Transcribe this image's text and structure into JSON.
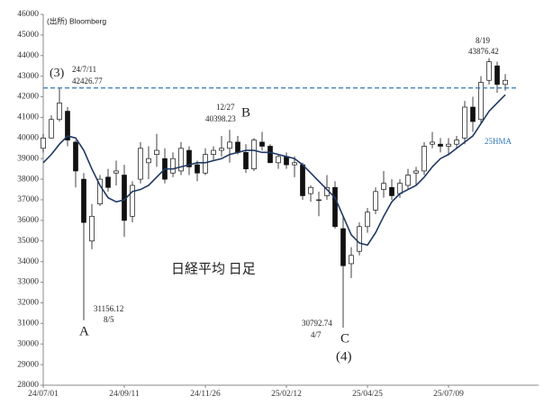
{
  "chart_data": {
    "type": "candlestick",
    "source": "(出所) Bloomberg",
    "title": "日経平均 日足",
    "categories": [
      "24/07/01",
      null,
      null,
      null,
      null,
      null,
      null,
      null,
      null,
      null,
      "24/09/11",
      null,
      null,
      null,
      null,
      null,
      null,
      null,
      null,
      null,
      "24/11/26",
      null,
      null,
      null,
      null,
      null,
      null,
      null,
      null,
      null,
      "25/02/12",
      null,
      null,
      null,
      null,
      null,
      null,
      null,
      null,
      null,
      "25/04/25",
      null,
      null,
      null,
      null,
      null,
      null,
      null,
      null,
      null,
      "25/07/09",
      null,
      null,
      null,
      null,
      null,
      null,
      null
    ],
    "open": [
      39500,
      40000,
      40900,
      41300,
      39800,
      38000,
      35000,
      36800,
      38100,
      38300,
      38200,
      36200,
      38000,
      38800,
      39200,
      39000,
      38300,
      38400,
      39400,
      38700,
      38300,
      39200,
      39400,
      39500,
      39800,
      39300,
      38500,
      39800,
      39600,
      38800,
      39100,
      38700,
      38700,
      37300,
      37000,
      37200,
      37600,
      35600,
      33900,
      34500,
      35700,
      36500,
      37500,
      37600,
      37300,
      37700,
      38300,
      38400,
      39700,
      39700,
      39600,
      39700,
      40000,
      41500,
      40900,
      42800,
      43500,
      42600
    ],
    "high": [
      40200,
      41100,
      42426.77,
      41500,
      39900,
      38300,
      36800,
      38200,
      38500,
      38900,
      38700,
      37900,
      39800,
      39600,
      40200,
      39500,
      39300,
      39800,
      39600,
      38900,
      39500,
      39600,
      40100,
      40398.23,
      40100,
      39700,
      40000,
      40300,
      39700,
      39200,
      39300,
      39100,
      38800,
      37700,
      37400,
      38200,
      37900,
      36200,
      34700,
      35900,
      36600,
      37600,
      38400,
      38000,
      38000,
      38500,
      38600,
      39800,
      40300,
      40000,
      40000,
      40100,
      41800,
      42000,
      43000,
      43876.42,
      43700,
      43100
    ],
    "low": [
      39300,
      40000,
      40800,
      39600,
      37600,
      31156.12,
      34600,
      36700,
      37400,
      37700,
      35200,
      35900,
      37800,
      38000,
      38600,
      37800,
      38100,
      38200,
      38200,
      37900,
      38200,
      38900,
      39100,
      38800,
      39200,
      38300,
      38400,
      39400,
      38800,
      38500,
      38500,
      38100,
      37000,
      36900,
      36200,
      37000,
      35600,
      30792.74,
      33200,
      34300,
      35400,
      36300,
      37100,
      37000,
      37100,
      37500,
      37700,
      38200,
      39500,
      39300,
      39200,
      39500,
      39700,
      40300,
      40700,
      42600,
      42200,
      42300
    ],
    "close": [
      40000,
      40900,
      41700,
      39900,
      38400,
      35900,
      36200,
      38000,
      37600,
      38400,
      36000,
      37700,
      39500,
      39000,
      39400,
      38000,
      39000,
      39500,
      38600,
      38300,
      39200,
      39400,
      39500,
      39800,
      39300,
      38500,
      39900,
      39600,
      38800,
      39100,
      38700,
      38800,
      37200,
      37600,
      37000,
      37600,
      35700,
      33800,
      34300,
      35700,
      36400,
      37400,
      37800,
      37200,
      37800,
      38200,
      38400,
      39600,
      39800,
      39600,
      39700,
      39900,
      41500,
      40800,
      42700,
      43700,
      42600,
      42800
    ],
    "ma": {
      "name": "25HMA",
      "color": "#1f3864",
      "values": [
        38800,
        39200,
        39700,
        40100,
        40000,
        39400,
        38500,
        37700,
        37100,
        36900,
        37000,
        37400,
        37500,
        37700,
        38100,
        38500,
        38500,
        38600,
        38700,
        38800,
        38800,
        38900,
        39000,
        39200,
        39300,
        39400,
        39400,
        39300,
        39300,
        39200,
        39100,
        39000,
        38700,
        38300,
        37900,
        37500,
        37100,
        36200,
        35300,
        34900,
        34800,
        35400,
        36200,
        36900,
        37300,
        37500,
        37700,
        38100,
        38600,
        39000,
        39200,
        39500,
        39800,
        40100,
        40700,
        41300,
        41700,
        42100
      ]
    },
    "reference_color": "#2e75b6",
    "annotations": [
      "(3)",
      "24/7/11",
      "42426.77",
      "12/27",
      "40398.23",
      "B",
      "31156.12",
      "8/5",
      "A",
      "30792.74",
      "4/7",
      "C",
      "(4)",
      "8/19",
      "43876.42"
    ],
    "ylim": [
      28000,
      46000
    ],
    "yticks": [
      28000,
      29000,
      30000,
      31000,
      32000,
      33000,
      34000,
      35000,
      36000,
      37000,
      38000,
      39000,
      40000,
      41000,
      42000,
      43000,
      44000,
      45000,
      46000
    ]
  }
}
